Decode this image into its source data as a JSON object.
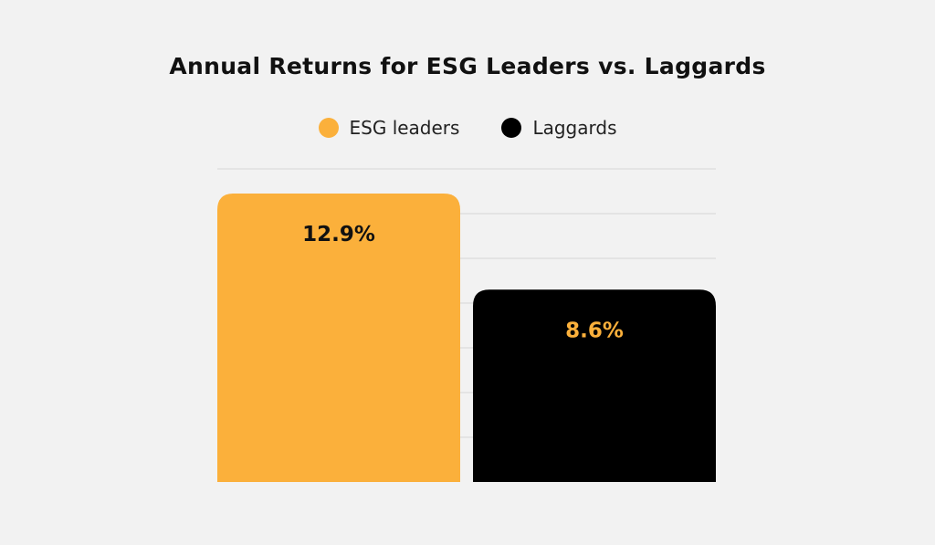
{
  "chart_data": {
    "type": "bar",
    "title": "Annual Returns for ESG Leaders vs. Laggards",
    "xlabel": "",
    "ylabel": "",
    "ylim": [
      0,
      14
    ],
    "grid": true,
    "legend_position": "top-center",
    "categories": [
      "ESG leaders",
      "Laggards"
    ],
    "values": [
      12.9,
      8.6
    ],
    "data_labels": [
      "12.9%",
      "8.6%"
    ],
    "colors": [
      "#fbb03b",
      "#000000"
    ],
    "label_colors": [
      "#111111",
      "#fbb03b"
    ]
  },
  "legend": {
    "items": [
      {
        "label": "ESG leaders",
        "color": "#fbb03b"
      },
      {
        "label": "Laggards",
        "color": "#000000"
      }
    ]
  }
}
